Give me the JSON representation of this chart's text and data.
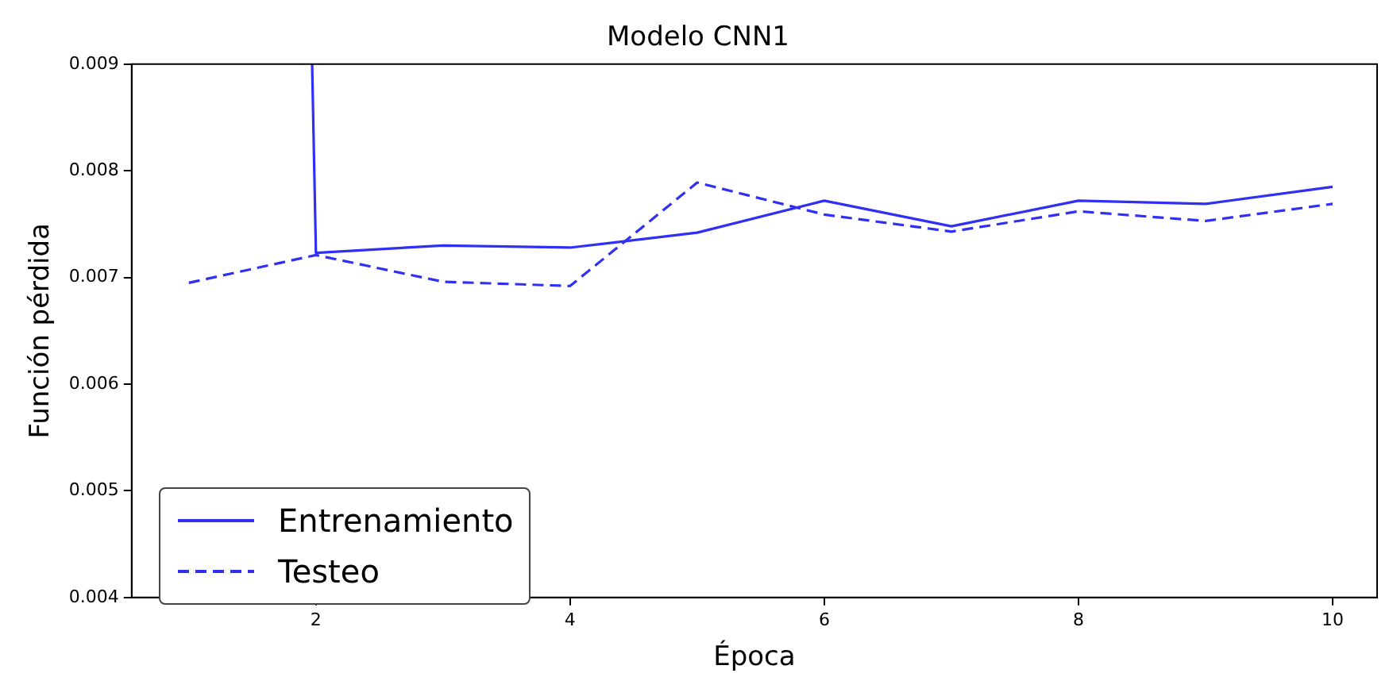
{
  "chart_data": {
    "type": "line",
    "title": "Modelo CNN1",
    "xlabel": "Época",
    "ylabel": "Función pérdida",
    "series": [
      {
        "name": "Entrenamiento",
        "color": "#2f2ff5",
        "line_style": "solid",
        "x": [
          1.97,
          2,
          3,
          4,
          5,
          6,
          7,
          8,
          9,
          10
        ],
        "values": [
          0.009,
          0.00723,
          0.0073,
          0.00728,
          0.00742,
          0.00772,
          0.00748,
          0.00772,
          0.00769,
          0.00785
        ]
      },
      {
        "name": "Testeo",
        "color": "#2f2ff5",
        "line_style": "dashed",
        "x": [
          1,
          2,
          3,
          4,
          5,
          6,
          7,
          8,
          9,
          10
        ],
        "values": [
          0.00695,
          0.00721,
          0.00696,
          0.00692,
          0.00789,
          0.00759,
          0.00743,
          0.00762,
          0.00753,
          0.00769
        ]
      }
    ],
    "xlim": [
      0.55,
      10.35
    ],
    "xticks": [
      2,
      4,
      6,
      8,
      10
    ],
    "ylim": [
      0.004,
      0.009
    ],
    "yticks": [
      {
        "value": 0.004,
        "label": "0.004"
      },
      {
        "value": 0.005,
        "label": "0.005"
      },
      {
        "value": 0.006,
        "label": "0.006"
      },
      {
        "value": 0.007,
        "label": "0.007"
      },
      {
        "value": 0.008,
        "label": "0.008"
      },
      {
        "value": 0.009,
        "label": "0.009"
      }
    ],
    "grid": false,
    "legend": "bottom left",
    "marker": "none"
  }
}
